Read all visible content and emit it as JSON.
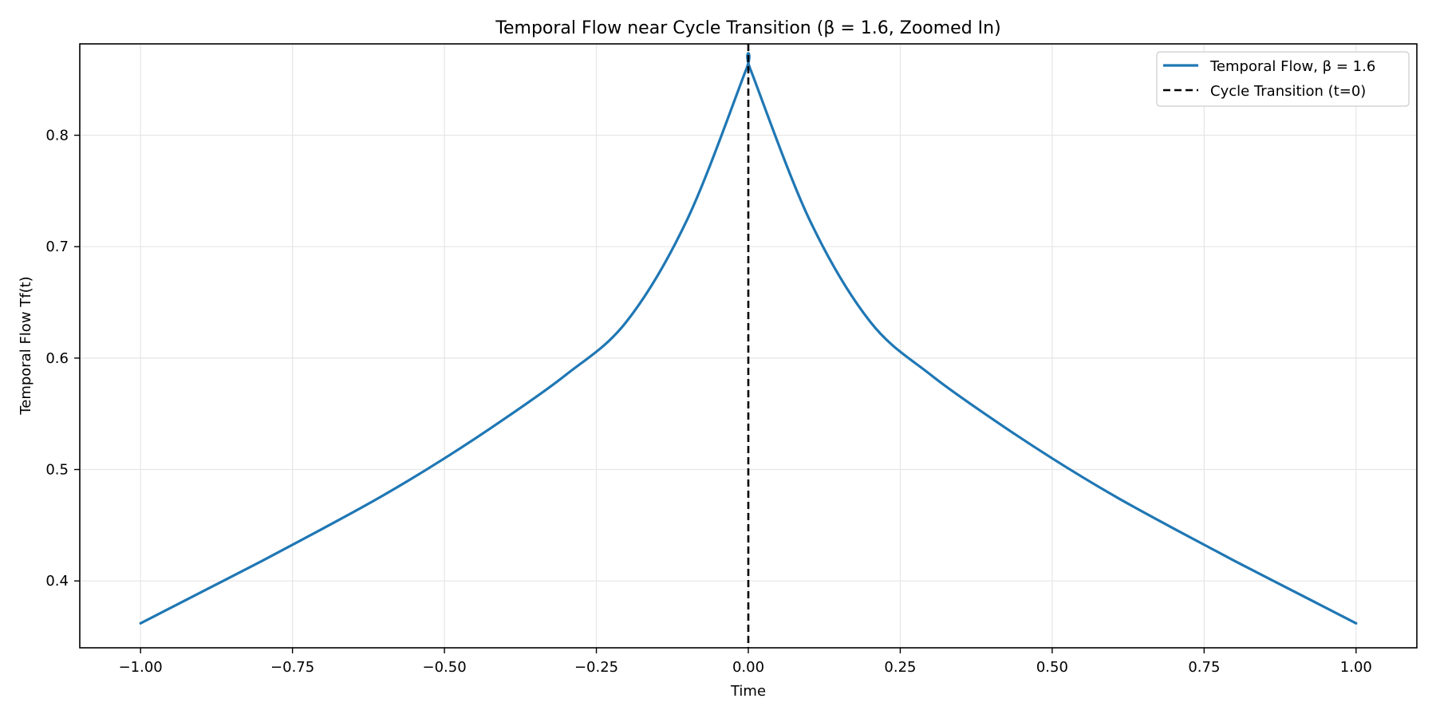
{
  "chart_data": {
    "type": "line",
    "title": "Temporal Flow near Cycle Transition (β = 1.6, Zoomed In)",
    "xlabel": "Time",
    "ylabel": "Temporal Flow Tf(t)",
    "xlim": [
      -1.1,
      1.1
    ],
    "ylim": [
      0.34,
      0.882
    ],
    "xticks": [
      -1.0,
      -0.75,
      -0.5,
      -0.25,
      0.0,
      0.25,
      0.5,
      0.75,
      1.0
    ],
    "xtick_labels": [
      "−1.00",
      "−0.75",
      "−0.50",
      "−0.25",
      "0.00",
      "0.25",
      "0.50",
      "0.75",
      "1.00"
    ],
    "yticks": [
      0.4,
      0.5,
      0.6,
      0.7,
      0.8
    ],
    "ytick_labels": [
      "0.4",
      "0.5",
      "0.6",
      "0.7",
      "0.8"
    ],
    "grid": true,
    "legend_position": "top-right",
    "series": [
      {
        "name": "Temporal Flow, β = 1.6",
        "color": "#1f77b4",
        "style": "solid",
        "x": [
          -1.0,
          -0.9,
          -0.8,
          -0.7,
          -0.6,
          -0.5,
          -0.4,
          -0.3,
          -0.2,
          -0.1,
          -0.005,
          0.005,
          0.1,
          0.2,
          0.3,
          0.4,
          0.5,
          0.6,
          0.7,
          0.8,
          0.9,
          1.0
        ],
        "y": [
          0.362,
          0.39,
          0.418,
          0.447,
          0.477,
          0.51,
          0.546,
          0.585,
          0.633,
          0.725,
          0.857,
          0.857,
          0.725,
          0.633,
          0.585,
          0.546,
          0.51,
          0.477,
          0.447,
          0.418,
          0.39,
          0.362
        ]
      },
      {
        "name": "Cycle Transition (t=0)",
        "color": "#000000",
        "style": "dashed",
        "vline_x": 0.0
      }
    ]
  }
}
